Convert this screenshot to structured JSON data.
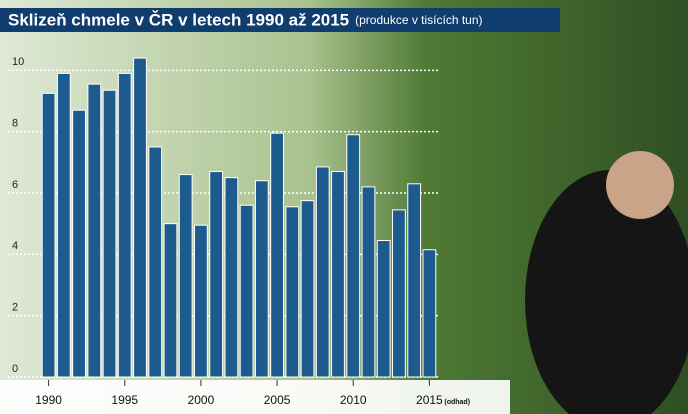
{
  "chart_data": {
    "type": "bar",
    "title": "Sklizeň chmele v ČR v letech 1990 až 2015",
    "subtitle": "(produkce v tisících tun)",
    "annotation": "(odhad)",
    "x": [
      1990,
      1991,
      1992,
      1993,
      1994,
      1995,
      1996,
      1997,
      1998,
      1999,
      2000,
      2001,
      2002,
      2003,
      2004,
      2005,
      2006,
      2007,
      2008,
      2009,
      2010,
      2011,
      2012,
      2013,
      2014,
      2015
    ],
    "values": [
      9.25,
      9.9,
      8.7,
      9.55,
      9.35,
      9.9,
      10.4,
      7.5,
      5.0,
      6.6,
      4.95,
      6.7,
      6.5,
      5.6,
      6.4,
      7.95,
      5.55,
      5.75,
      6.85,
      6.7,
      7.9,
      6.2,
      4.45,
      5.45,
      6.3,
      4.15
    ],
    "color": "#1d5a8e",
    "xlim": [
      1989.5,
      2015.5
    ],
    "xticks": [
      1990,
      1995,
      2000,
      2005,
      2010,
      2015
    ],
    "ylim": [
      0,
      10.5
    ],
    "yticks": [
      0,
      2,
      4,
      6,
      8,
      10
    ],
    "grid": true
  }
}
